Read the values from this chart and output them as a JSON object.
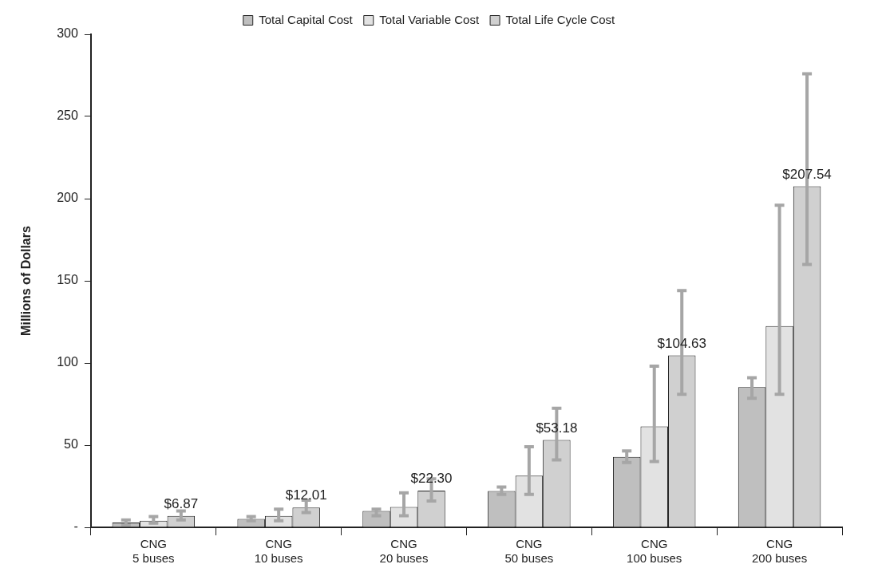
{
  "chart_data": {
    "type": "bar",
    "ylabel": "Millions of Dollars",
    "categories": [
      "CNG\n5 buses",
      "CNG\n10 buses",
      "CNG\n20 buses",
      "CNG\n50 buses",
      "CNG\n100 buses",
      "CNG\n200 buses"
    ],
    "series": [
      {
        "name": "Total Capital Cost",
        "color": "#bfbfbf",
        "values": [
          2.9,
          5.1,
          9.9,
          22.1,
          42.8,
          85.3
        ],
        "errors": [
          [
            1.5,
            4.5
          ],
          [
            4,
            6.5
          ],
          [
            7,
            11
          ],
          [
            20,
            24.5
          ],
          [
            39.5,
            46.5
          ],
          [
            78.5,
            91
          ]
        ]
      },
      {
        "name": "Total Variable Cost",
        "color": "#e2e2e2",
        "values": [
          4.0,
          6.9,
          12.4,
          31.4,
          61.4,
          122.5
        ],
        "errors": [
          [
            2.5,
            6.5
          ],
          [
            4,
            11
          ],
          [
            7,
            21
          ],
          [
            20,
            49
          ],
          [
            40,
            98
          ],
          [
            81,
            196
          ]
        ]
      },
      {
        "name": "Total Life Cycle Cost",
        "color": "#d0d0d0",
        "values": [
          6.87,
          12.01,
          22.3,
          53.18,
          104.63,
          207.54
        ],
        "errors": [
          [
            4.5,
            10
          ],
          [
            9,
            16.5
          ],
          [
            16,
            29.5
          ],
          [
            41,
            72.5
          ],
          [
            81,
            144
          ],
          [
            160,
            276
          ]
        ],
        "value_labels": [
          "$6.87",
          "$12.01",
          "$22.30",
          "$53.18",
          "$104.63",
          "$207.54"
        ]
      }
    ],
    "ylim": [
      0,
      300
    ],
    "yticks": [
      {
        "value": 0,
        "label": "-"
      },
      50,
      100,
      150,
      200,
      250,
      300
    ],
    "grid": false,
    "legend": "top"
  }
}
